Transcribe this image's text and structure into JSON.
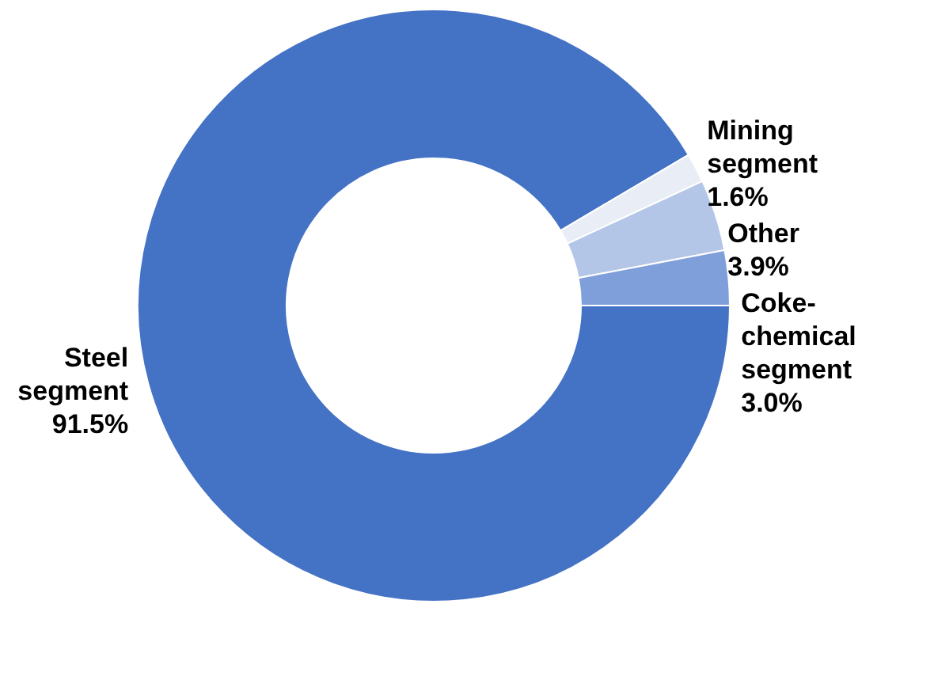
{
  "chart_data": {
    "type": "donut",
    "categories": [
      "Steel segment",
      "Mining segment",
      "Other",
      "Coke-chemical segment"
    ],
    "values": [
      91.5,
      1.6,
      3.9,
      3.0
    ],
    "value_labels": [
      "91.5%",
      "1.6%",
      "3.9%",
      "3.0%"
    ],
    "colors": [
      "#4472c4",
      "#e9edf6",
      "#b4c6e7",
      "#7f9fdb"
    ]
  }
}
